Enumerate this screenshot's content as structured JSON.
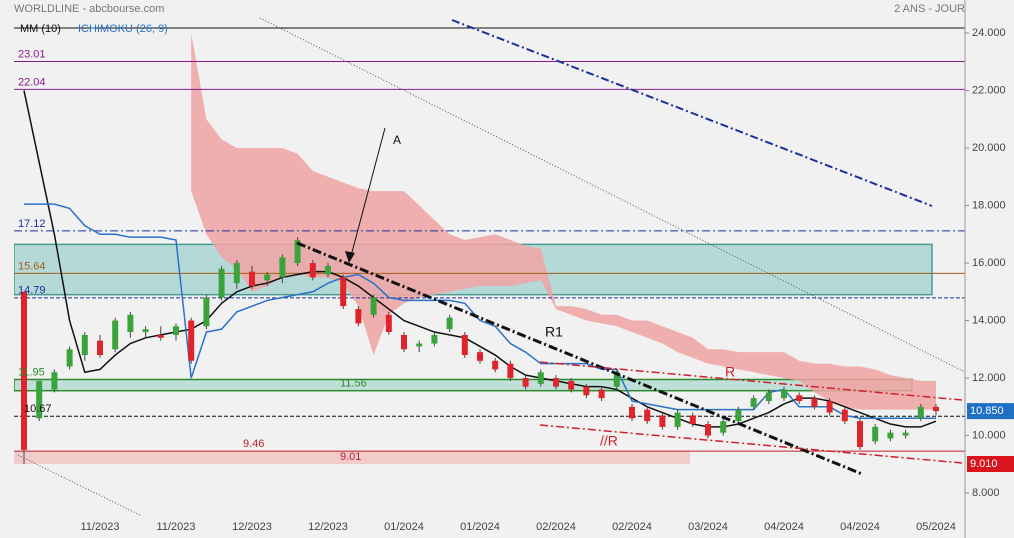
{
  "chart_data": {
    "type": "candlestick",
    "title": "WORLDLINE - abcbourse.com",
    "subtitle": "2 ANS - JOUR",
    "categories": [
      null,
      null,
      null,
      null,
      null,
      "11/2023",
      null,
      null,
      null,
      null,
      "11/2023",
      null,
      null,
      null,
      null,
      "12/2023",
      null,
      null,
      null,
      null,
      "12/2023",
      null,
      null,
      null,
      null,
      "01/2024",
      null,
      null,
      null,
      null,
      "01/2024",
      null,
      null,
      null,
      null,
      "02/2024",
      null,
      null,
      null,
      null,
      "02/2024",
      null,
      null,
      null,
      null,
      "03/2024",
      null,
      null,
      null,
      null,
      "04/2024",
      null,
      null,
      null,
      null,
      "04/2024",
      null,
      null,
      null,
      null,
      "05/2024"
    ],
    "open": [
      15.0,
      10.6,
      11.6,
      12.4,
      12.8,
      13.3,
      13.0,
      13.6,
      13.6,
      13.5,
      13.5,
      14.0,
      13.8,
      14.8,
      15.3,
      15.7,
      15.4,
      15.5,
      16.0,
      16.0,
      15.6,
      15.5,
      14.4,
      14.2,
      14.2,
      13.5,
      13.1,
      13.2,
      13.7,
      13.5,
      12.9,
      12.6,
      12.5,
      12.0,
      11.8,
      12.0,
      11.9,
      11.7,
      11.6,
      11.7,
      11.0,
      10.9,
      10.7,
      10.3,
      10.7,
      10.4,
      10.1,
      10.5,
      11.0,
      11.2,
      11.3,
      11.4,
      11.3,
      11.2,
      10.9,
      10.5,
      9.8,
      9.9,
      10.0,
      10.6,
      11.0
    ],
    "high": [
      15.0,
      11.9,
      12.3,
      13.1,
      13.6,
      13.5,
      14.1,
      14.3,
      13.8,
      13.8,
      13.9,
      14.1,
      14.9,
      15.9,
      16.1,
      15.9,
      15.7,
      16.3,
      16.9,
      16.1,
      16.0,
      15.6,
      14.5,
      14.9,
      14.3,
      13.6,
      13.3,
      13.6,
      14.2,
      13.6,
      13.0,
      12.7,
      12.6,
      12.1,
      12.3,
      12.1,
      12.0,
      11.8,
      11.7,
      12.3,
      11.1,
      11.0,
      10.8,
      10.9,
      10.8,
      10.5,
      10.6,
      11.0,
      11.4,
      11.6,
      11.7,
      11.5,
      11.4,
      11.3,
      11.0,
      10.6,
      10.4,
      10.2,
      10.2,
      11.1,
      11.1
    ],
    "low": [
      9.0,
      10.5,
      11.5,
      12.3,
      12.6,
      12.7,
      12.9,
      13.4,
      13.4,
      13.3,
      13.3,
      12.5,
      13.7,
      14.7,
      15.1,
      15.1,
      15.2,
      15.3,
      15.9,
      15.4,
      15.5,
      14.4,
      13.8,
      14.1,
      13.5,
      12.9,
      12.9,
      13.1,
      13.6,
      12.7,
      12.5,
      12.2,
      11.9,
      11.6,
      11.7,
      11.6,
      11.5,
      11.3,
      11.2,
      11.6,
      10.5,
      10.4,
      10.2,
      10.2,
      10.3,
      9.9,
      10.0,
      10.4,
      10.9,
      11.1,
      11.2,
      11.1,
      10.9,
      10.7,
      10.4,
      9.5,
      9.7,
      9.8,
      9.9,
      10.5,
      10.7
    ],
    "close": [
      9.5,
      11.9,
      12.2,
      13.0,
      13.5,
      12.8,
      14.0,
      14.2,
      13.7,
      13.4,
      13.8,
      12.6,
      14.8,
      15.8,
      16.0,
      15.2,
      15.6,
      16.2,
      16.8,
      15.5,
      15.9,
      14.5,
      13.9,
      14.8,
      13.6,
      13.0,
      13.2,
      13.5,
      14.1,
      12.8,
      12.6,
      12.3,
      12.0,
      11.7,
      12.2,
      11.7,
      11.6,
      11.4,
      11.3,
      12.2,
      10.6,
      10.5,
      10.3,
      10.8,
      10.4,
      10.0,
      10.5,
      10.9,
      11.3,
      11.5,
      11.6,
      11.2,
      11.0,
      10.8,
      10.5,
      9.6,
      10.3,
      10.1,
      10.1,
      11.0,
      10.85
    ],
    "up_color": "#3ba33b",
    "down_color": "#e0242b",
    "series": [
      {
        "name": "MM (10)",
        "color": "#111111",
        "values": [
          22.0,
          19.5,
          17.0,
          14.0,
          12.2,
          12.3,
          12.8,
          13.2,
          13.4,
          13.5,
          13.6,
          13.7,
          14.0,
          14.6,
          15.0,
          15.2,
          15.3,
          15.5,
          15.6,
          15.7,
          15.7,
          15.5,
          15.2,
          14.8,
          14.4,
          14.0,
          13.8,
          13.6,
          13.5,
          13.4,
          13.1,
          12.8,
          12.4,
          12.1,
          12.0,
          11.9,
          11.8,
          11.7,
          11.7,
          11.6,
          11.3,
          11.0,
          10.8,
          10.6,
          10.4,
          10.3,
          10.3,
          10.4,
          10.6,
          10.8,
          11.1,
          11.3,
          11.3,
          11.2,
          11.0,
          10.8,
          10.6,
          10.4,
          10.3,
          10.3,
          10.5
        ]
      },
      {
        "name": "ICHIMOKU (26, 9)",
        "color": "#2a72c8",
        "values": [
          18.05,
          18.05,
          18.05,
          17.9,
          17.3,
          17.0,
          17.0,
          16.9,
          16.9,
          16.9,
          16.8,
          12.0,
          13.6,
          13.7,
          14.3,
          14.5,
          14.7,
          14.8,
          14.9,
          15.0,
          15.3,
          15.5,
          15.6,
          15.3,
          14.8,
          14.7,
          14.7,
          14.7,
          14.7,
          14.6,
          14.0,
          13.8,
          13.2,
          12.9,
          12.5,
          12.5,
          12.5,
          12.5,
          12.3,
          12.3,
          11.2,
          11.1,
          11.0,
          10.9,
          10.9,
          10.9,
          10.9,
          10.9,
          10.9,
          11.5,
          11.6,
          11.0,
          11.0,
          11.0,
          10.7,
          10.6,
          10.6,
          10.6,
          10.6,
          10.6,
          10.6
        ]
      }
    ],
    "cloud": {
      "color": "#f0a3a3",
      "upper": [
        null,
        null,
        null,
        null,
        null,
        null,
        null,
        null,
        null,
        null,
        null,
        24.0,
        21.0,
        20.3,
        20.0,
        20.0,
        20.0,
        20.0,
        19.8,
        19.2,
        19.0,
        18.8,
        18.6,
        18.5,
        18.5,
        18.5,
        18.0,
        17.5,
        17.0,
        16.8,
        16.9,
        17.0,
        16.8,
        16.6,
        16.5,
        14.5,
        14.5,
        14.4,
        14.2,
        14.2,
        14.0,
        14.0,
        13.8,
        13.6,
        13.4,
        13.0,
        13.0,
        12.9,
        12.9,
        12.9,
        12.9,
        12.6,
        12.5,
        12.5,
        12.4,
        12.4,
        12.3,
        12.1,
        12.0,
        11.9,
        11.9
      ],
      "lower": [
        null,
        null,
        null,
        null,
        null,
        null,
        null,
        null,
        null,
        null,
        null,
        18.5,
        17.0,
        16.2,
        15.8,
        15.0,
        15.2,
        15.5,
        15.6,
        15.5,
        15.5,
        15.3,
        14.5,
        12.8,
        14.2,
        14.6,
        14.8,
        14.9,
        15.0,
        15.1,
        15.2,
        15.2,
        15.2,
        15.3,
        15.4,
        14.4,
        14.2,
        14.0,
        13.9,
        13.8,
        13.6,
        13.4,
        13.2,
        12.9,
        12.7,
        12.5,
        12.4,
        12.3,
        12.2,
        12.1,
        12.0,
        11.9,
        11.5,
        11.2,
        11.0,
        10.9,
        10.9,
        10.9,
        10.9,
        10.9,
        10.9
      ]
    },
    "levels": [
      {
        "value": 23.01,
        "color": "#8b1a8b",
        "style": "solid"
      },
      {
        "value": 22.04,
        "color": "#8b1a8b",
        "style": "solid"
      },
      {
        "value": 17.12,
        "color": "#1a2f9c",
        "style": "dashdot"
      },
      {
        "value": 15.64,
        "color": "#a0601a",
        "style": "solid"
      },
      {
        "value": 14.79,
        "color": "#1a2f9c",
        "style": "dashed"
      },
      {
        "value": 11.95,
        "color": "#2c8a2c",
        "style": "none"
      },
      {
        "value": 11.56,
        "color": "#2c8a2c",
        "style": "none"
      },
      {
        "value": 10.67,
        "color": "#111111",
        "style": "dashed"
      },
      {
        "value": 9.46,
        "color": "#c0202a",
        "style": "solid"
      },
      {
        "value": 9.01,
        "color": "#c0202a",
        "style": "none"
      }
    ],
    "zones": [
      {
        "range": [
          14.9,
          16.65
        ],
        "color": "#8ecac4"
      },
      {
        "range": [
          11.56,
          11.95
        ],
        "color": "#9ed3c8"
      },
      {
        "range": [
          9.01,
          9.46
        ],
        "color": "#f2c2c2"
      }
    ],
    "price_labels": [
      {
        "value": 10.85,
        "label": "10.850",
        "color": "#1f6fc5"
      },
      {
        "value": 9.01,
        "label": "9.010",
        "color": "#d9141c"
      }
    ],
    "annotations": [
      {
        "text": "A"
      },
      {
        "text": "R1"
      },
      {
        "text": "R"
      },
      {
        "text": "//R"
      }
    ],
    "ylim": [
      7.41,
      25.15
    ],
    "yticks": [
      {
        "value": 8,
        "label": "8.000"
      },
      {
        "value": 10,
        "label": "10.000"
      },
      {
        "value": 12,
        "label": "12.000"
      },
      {
        "value": 14,
        "label": "14.000"
      },
      {
        "value": 16,
        "label": "16.000"
      },
      {
        "value": 18,
        "label": "18.000"
      },
      {
        "value": 20,
        "label": "20.000"
      },
      {
        "value": 22,
        "label": "22.000"
      },
      {
        "value": 24,
        "label": "24.000"
      }
    ]
  }
}
